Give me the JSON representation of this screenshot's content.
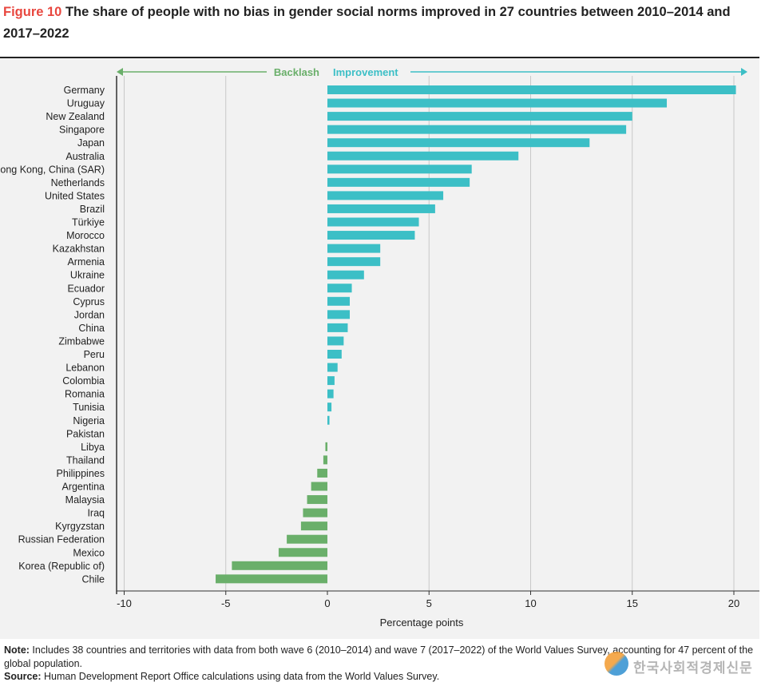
{
  "header": {
    "figure_label": "Figure 10",
    "title": "The share of people with no bias in gender social norms improved in 27 countries between 2010–2014 and 2017–2022"
  },
  "legend": {
    "backlash_label": "Backlash",
    "improvement_label": "Improvement"
  },
  "colors": {
    "improvement": "#3cbfc6",
    "backlash": "#6aaf6a",
    "title_accent": "#e8473f",
    "gridline": "#c8c8c8",
    "panel_bg": "#f2f2f2"
  },
  "chart_data": {
    "type": "bar",
    "orientation": "horizontal",
    "xlabel": "Percentage points",
    "xlim": [
      -10.5,
      20.2
    ],
    "xticks": [
      -10,
      -5,
      0,
      5,
      10,
      15,
      20
    ],
    "xtick_labels": [
      "-10",
      "-5",
      "0",
      "5",
      "10",
      "15",
      "20"
    ],
    "grid": "vertical",
    "categories": [
      "Germany",
      "Uruguay",
      "New Zealand",
      "Singapore",
      "Japan",
      "Australia",
      "Hong Kong, China (SAR)",
      "Netherlands",
      "United States",
      "Brazil",
      "Türkiye",
      "Morocco",
      "Kazakhstan",
      "Armenia",
      "Ukraine",
      "Ecuador",
      "Cyprus",
      "Jordan",
      "China",
      "Zimbabwe",
      "Peru",
      "Lebanon",
      "Colombia",
      "Romania",
      "Tunisia",
      "Nigeria",
      "Pakistan",
      "Libya",
      "Thailand",
      "Philippines",
      "Argentina",
      "Malaysia",
      "Iraq",
      "Kyrgyzstan",
      "Russian Federation",
      "Mexico",
      "Korea (Republic of)",
      "Chile"
    ],
    "values": [
      20.1,
      16.7,
      15.0,
      14.7,
      12.9,
      9.4,
      7.1,
      7.0,
      5.7,
      5.3,
      4.5,
      4.3,
      2.6,
      2.6,
      1.8,
      1.2,
      1.1,
      1.1,
      1.0,
      0.8,
      0.7,
      0.5,
      0.35,
      0.3,
      0.2,
      0.1,
      0.0,
      -0.1,
      -0.2,
      -0.5,
      -0.8,
      -1.0,
      -1.2,
      -1.3,
      -2.0,
      -2.4,
      -4.7,
      -5.5
    ]
  },
  "notes": {
    "note_label": "Note:",
    "note_text": " Includes 38 countries and territories with data from both wave 6 (2010–2014) and wave 7 (2017–2022) of the World Values Survey, accounting for 47 percent of the global population.",
    "source_label": "Source:",
    "source_text": " Human Development Report Office calculations using data from the World Values Survey."
  },
  "watermark": {
    "text": "한국사회적경제신문"
  }
}
